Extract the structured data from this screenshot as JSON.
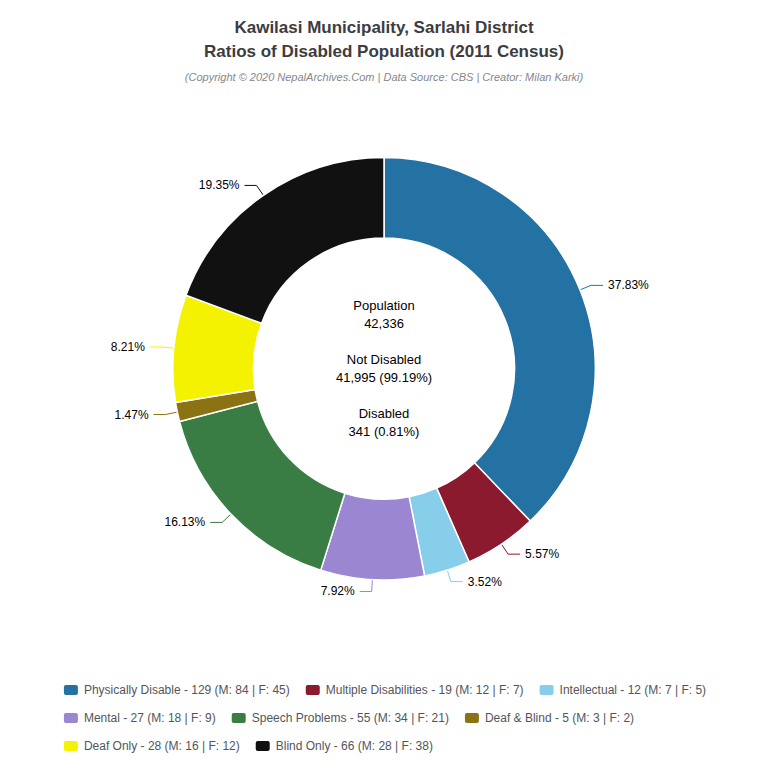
{
  "chart_data": {
    "type": "pie",
    "title": "Kawilasi Municipality, Sarlahi District\nRatios of Disabled Population (2011 Census)",
    "subtitle": "(Copyright © 2020 NepalArchives.Com | Data Source: CBS | Creator: Milan Karki)",
    "categories": [
      "Physically Disable - 129 (M: 84 | F: 45)",
      "Multiple Disabilities - 19 (M: 12 | F: 7)",
      "Intellectual - 12 (M: 7 | F: 5)",
      "Mental - 27 (M: 18 | F: 9)",
      "Speech Problems - 55 (M: 34 | F: 21)",
      "Deaf & Blind - 5 (M: 3 | F: 2)",
      "Deaf Only - 28 (M: 16 | F: 12)",
      "Blind Only - 66 (M: 28 | F: 38)"
    ],
    "values": [
      37.83,
      5.57,
      3.52,
      7.92,
      16.13,
      1.47,
      8.21,
      19.35
    ],
    "value_labels": [
      "37.83%",
      "5.57%",
      "3.52%",
      "7.92%",
      "16.13%",
      "1.47%",
      "8.21%",
      "19.35%"
    ],
    "colors": [
      "#2471a3",
      "#8b1a2e",
      "#87ceeb",
      "#9b87d1",
      "#3a7d44",
      "#8b7313",
      "#f4f200",
      "#111111"
    ],
    "data_labels": true,
    "legend": "bottom",
    "annotations": [
      "Population\n42,336\n\nNot Disabled\n41,995 (99.19%)\n\nDisabled\n341 (0.81%)"
    ]
  }
}
